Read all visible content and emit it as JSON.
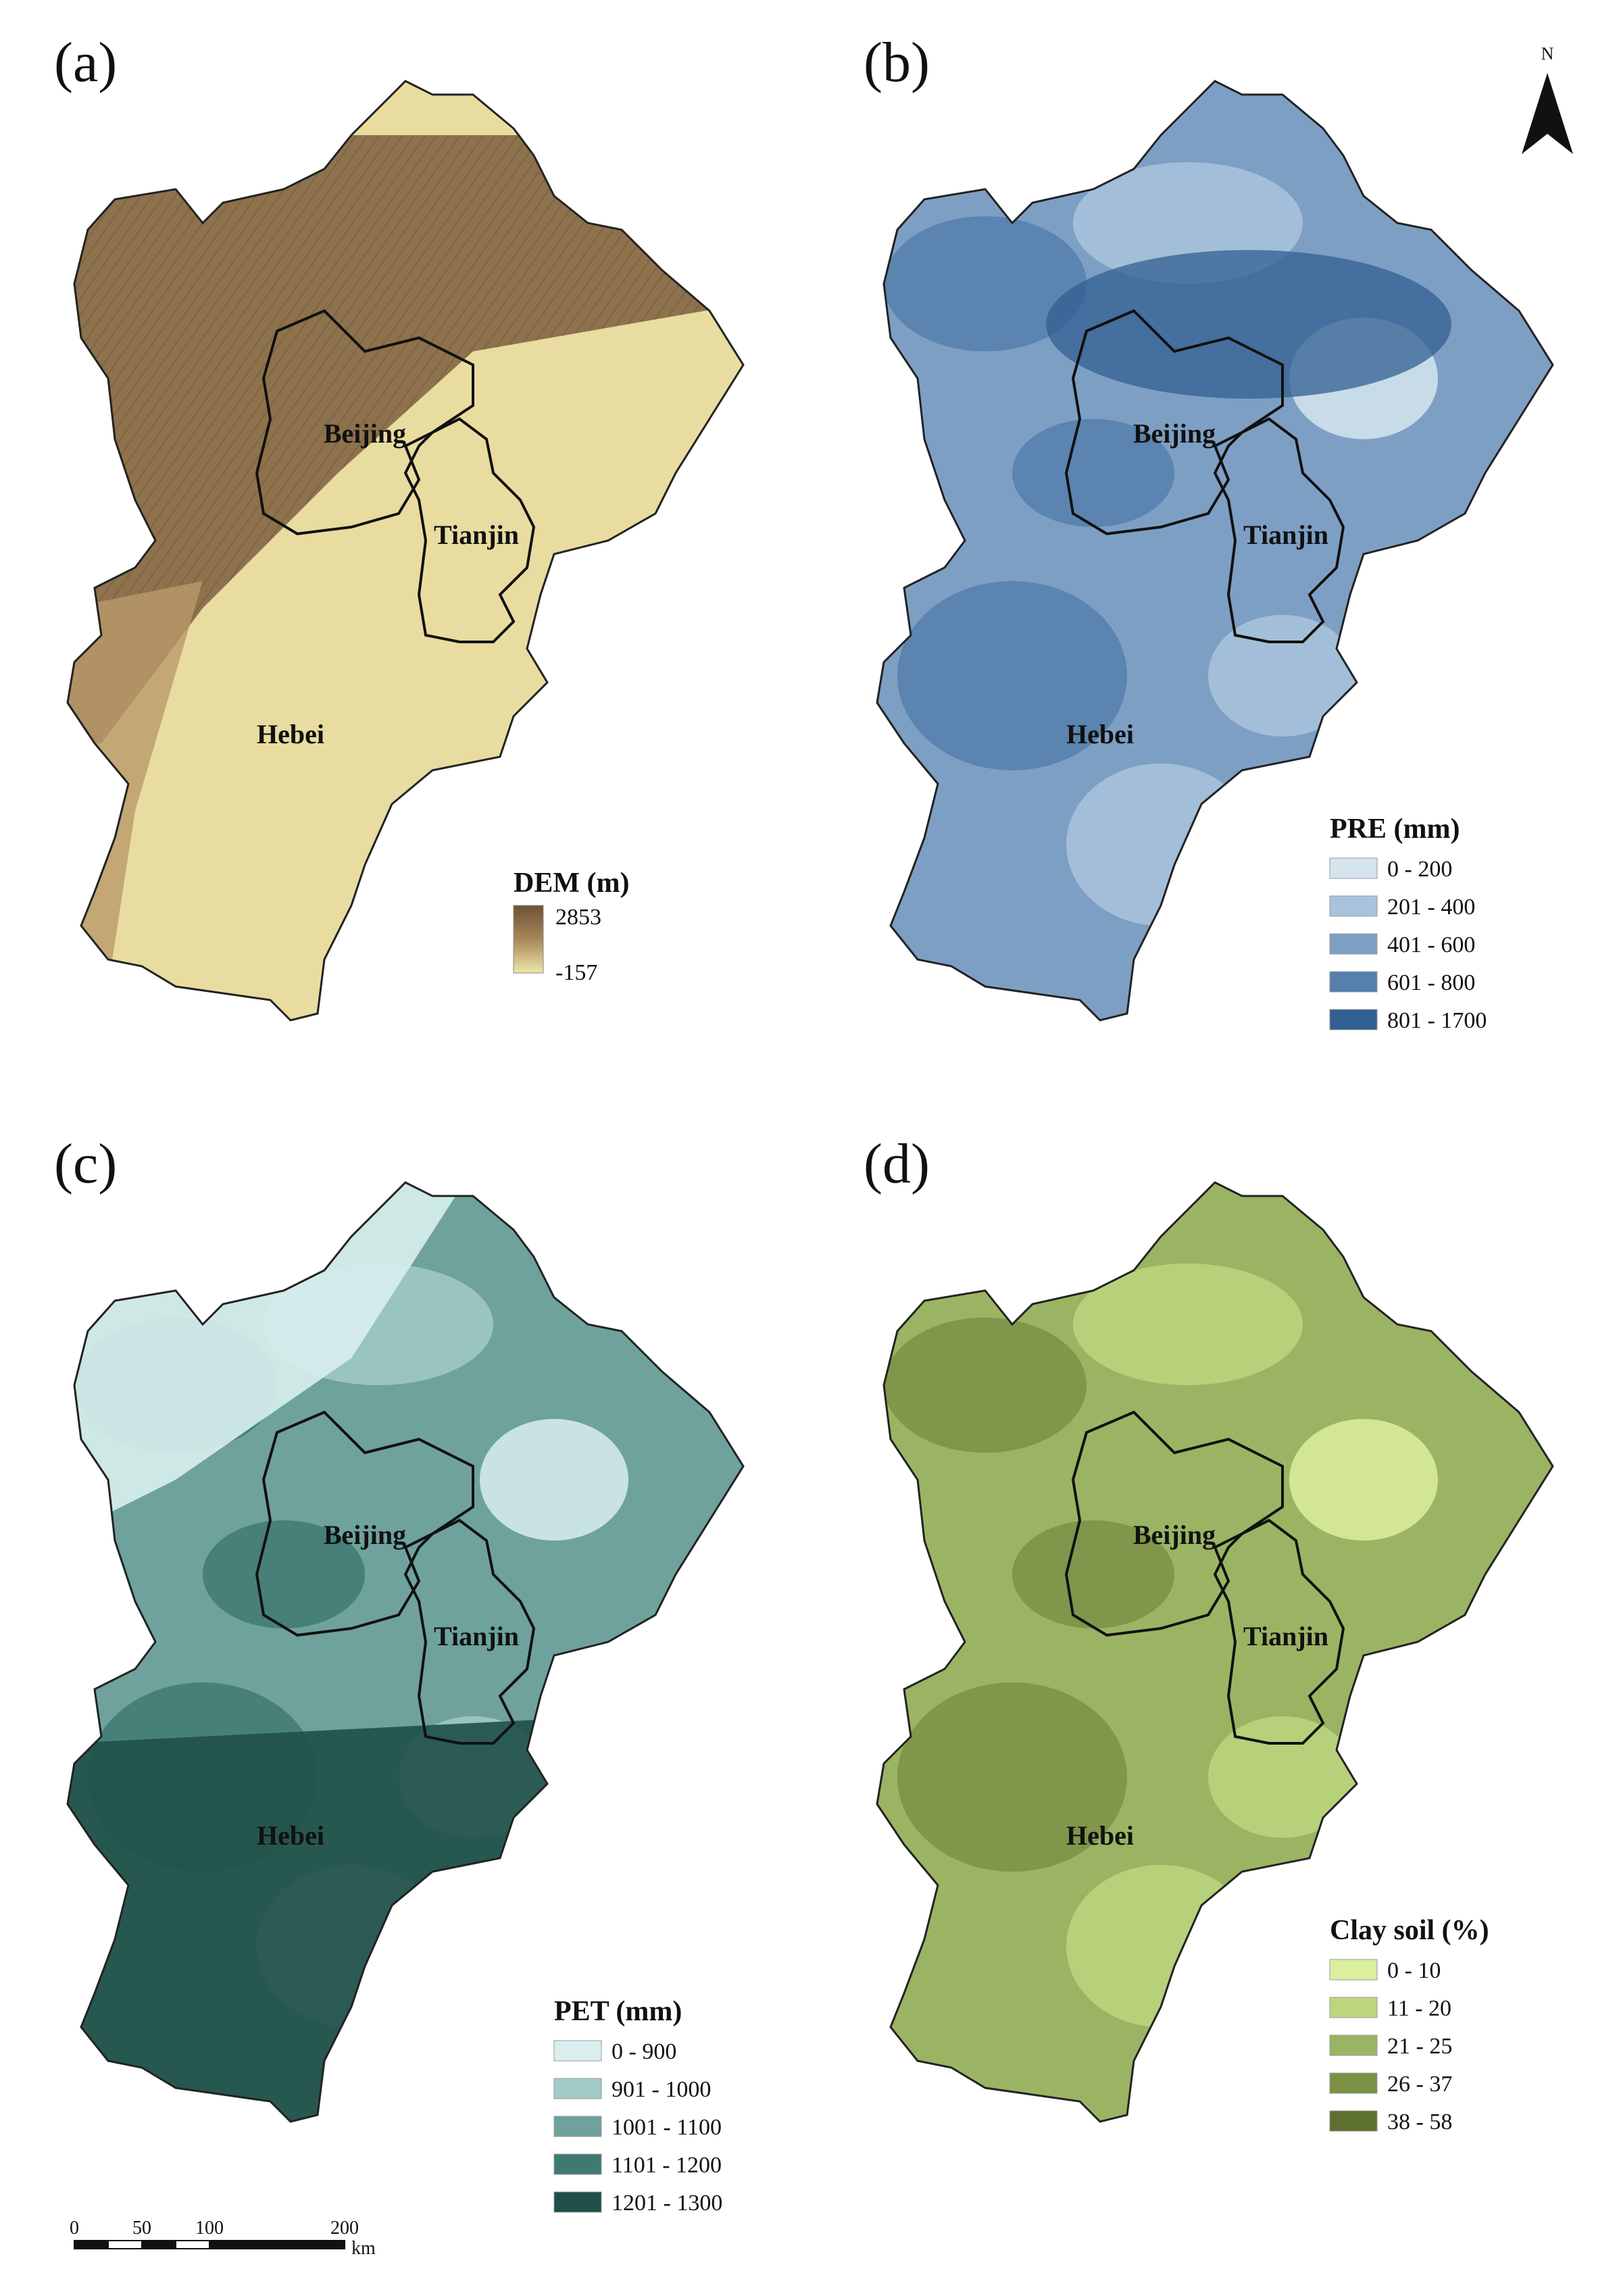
{
  "panels": [
    {
      "label": "(a)",
      "legend": {
        "title": "DEM (m)",
        "type": "gradient",
        "max_label": "2853",
        "min_label": "-157",
        "colors": [
          "#6e5136",
          "#a8875a",
          "#efe6a8"
        ]
      },
      "regions": {
        "beijing": "Beijing",
        "tianjin": "Tianjin",
        "hebei": "Hebei"
      }
    },
    {
      "label": "(b)",
      "legend": {
        "title": "PRE (mm)",
        "type": "classes",
        "items": [
          {
            "label": "0 - 200",
            "color": "#d4e5ee"
          },
          {
            "label": "201 - 400",
            "color": "#a9c3dc"
          },
          {
            "label": "401 - 600",
            "color": "#7e9fc4"
          },
          {
            "label": "601 - 800",
            "color": "#557fad"
          },
          {
            "label": "801 - 1700",
            "color": "#315f92"
          }
        ]
      },
      "regions": {
        "beijing": "Beijing",
        "tianjin": "Tianjin",
        "hebei": "Hebei"
      }
    },
    {
      "label": "(c)",
      "legend": {
        "title": "PET (mm)",
        "type": "classes",
        "items": [
          {
            "label": "0 - 900",
            "color": "#d8efee"
          },
          {
            "label": "901 - 1000",
            "color": "#a2cac6"
          },
          {
            "label": "1001 - 1100",
            "color": "#6fa29c"
          },
          {
            "label": "1101 - 1200",
            "color": "#3f7a72"
          },
          {
            "label": "1201 - 1300",
            "color": "#1f5048"
          }
        ]
      },
      "regions": {
        "beijing": "Beijing",
        "tianjin": "Tianjin",
        "hebei": "Hebei"
      }
    },
    {
      "label": "(d)",
      "legend": {
        "title": "Clay soil (%)",
        "type": "classes",
        "items": [
          {
            "label": "0 - 10",
            "color": "#dcef9f"
          },
          {
            "label": "11 - 20",
            "color": "#bcd57e"
          },
          {
            "label": "21 - 25",
            "color": "#9bb463"
          },
          {
            "label": "26 - 37",
            "color": "#7a9146"
          },
          {
            "label": "38 - 58",
            "color": "#5d7030"
          }
        ]
      },
      "regions": {
        "beijing": "Beijing",
        "tianjin": "Tianjin",
        "hebei": "Hebei"
      }
    }
  ],
  "north_arrow": {
    "label": "N"
  },
  "scale_bar": {
    "ticks": [
      "0",
      "50",
      "100",
      "200"
    ],
    "unit": "km"
  }
}
